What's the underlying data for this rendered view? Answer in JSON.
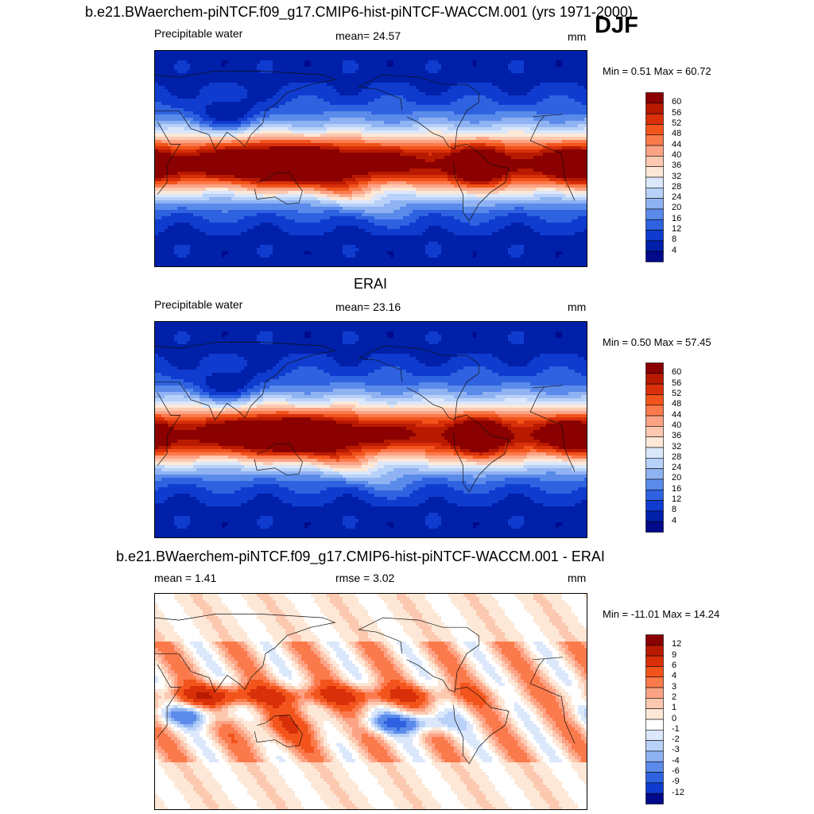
{
  "header": {
    "main_title": "b.e21.BWaerchem-piNTCF.f09_g17.CMIP6-hist-piNTCF-WACCM.001 (yrs 1971-2000)",
    "season": "DJF"
  },
  "chart_data": [
    {
      "type": "heatmap",
      "name": "model",
      "title": "",
      "left_label": "Precipitable water",
      "center_label": "mean=  24.57",
      "right_label": "mm",
      "minmax": "Min =   0.51 Max =  60.72",
      "colorbar_levels": [
        "60",
        "56",
        "52",
        "48",
        "44",
        "40",
        "36",
        "32",
        "28",
        "24",
        "20",
        "16",
        "12",
        "8",
        "4"
      ],
      "colors": [
        "#8b0000",
        "#b81a00",
        "#d9300a",
        "#f2541b",
        "#fb7a4b",
        "#fca386",
        "#fcc9b0",
        "#fde8d7",
        "#dbe7fb",
        "#b8d1f8",
        "#8fb2f2",
        "#5b8bea",
        "#2f62e0",
        "#0f3ccf",
        "#0020aa",
        "#000a8a"
      ],
      "ylim": [
        0,
        64
      ],
      "units": "mm"
    },
    {
      "type": "heatmap",
      "name": "obs",
      "title": "ERAI",
      "left_label": "Precipitable water",
      "center_label": "mean=  23.16",
      "right_label": "mm",
      "minmax": "Min =   0.50 Max =  57.45",
      "colorbar_levels": [
        "60",
        "56",
        "52",
        "48",
        "44",
        "40",
        "36",
        "32",
        "28",
        "24",
        "20",
        "16",
        "12",
        "8",
        "4"
      ],
      "colors": [
        "#8b0000",
        "#b81a00",
        "#d9300a",
        "#f2541b",
        "#fb7a4b",
        "#fca386",
        "#fcc9b0",
        "#fde8d7",
        "#dbe7fb",
        "#b8d1f8",
        "#8fb2f2",
        "#5b8bea",
        "#2f62e0",
        "#0f3ccf",
        "#0020aa",
        "#000a8a"
      ],
      "ylim": [
        0,
        64
      ],
      "units": "mm"
    },
    {
      "type": "heatmap",
      "name": "difference",
      "title": "b.e21.BWaerchem-piNTCF.f09_g17.CMIP6-hist-piNTCF-WACCM.001 - ERAI",
      "left_label": "mean =    1.41",
      "center_label": "rmse =    3.02",
      "right_label": "mm",
      "minmax": "Min = -11.01 Max =  14.24",
      "colorbar_levels": [
        "12",
        "9",
        "6",
        "4",
        "3",
        "2",
        "1",
        "0",
        "-1",
        "-2",
        "-3",
        "-4",
        "-6",
        "-9",
        "-12"
      ],
      "colors": [
        "#8b0000",
        "#b81a00",
        "#d9300a",
        "#f2541b",
        "#fb7a4b",
        "#fca386",
        "#fcc9b0",
        "#fde8d7",
        "#ffffff",
        "#dbe7fb",
        "#b8d1f8",
        "#8fb2f2",
        "#5b8bea",
        "#2f62e0",
        "#0f3ccf",
        "#000a8a"
      ],
      "ylim": [
        -12,
        12
      ],
      "units": "mm"
    }
  ]
}
